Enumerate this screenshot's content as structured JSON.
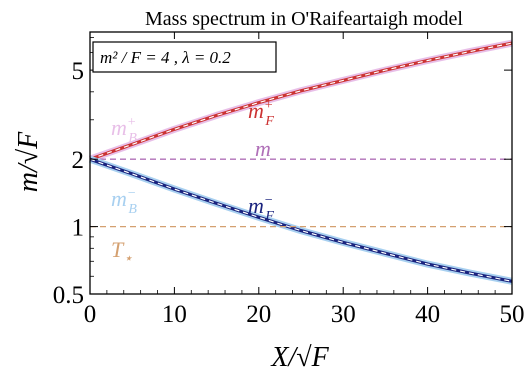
{
  "chart_data": {
    "type": "line",
    "title": "Mass spectrum in O'Raifeartaigh model",
    "xlabel": "X/√F",
    "ylabel": "m/√F",
    "xlim": [
      0,
      50
    ],
    "ylim": [
      0.5,
      7.4
    ],
    "y_scale": "log",
    "grid": false,
    "x_ticks": [
      "0",
      "10",
      "20",
      "30",
      "40",
      "50"
    ],
    "y_ticks": [
      "0.5",
      "1",
      "2",
      "5"
    ],
    "params_box": {
      "text": "m² / F = 4 , λ = 0.2",
      "placement": "top-left"
    },
    "x": [
      0,
      5,
      10,
      15,
      20,
      25,
      30,
      35,
      40,
      45,
      50
    ],
    "series": [
      {
        "key": "mBplus",
        "label": "m_B^+",
        "label_main": "m",
        "label_sup": "+",
        "label_sub": "B",
        "color": "#e8bfe8",
        "style": "solid-band",
        "values": [
          2.0,
          2.33,
          2.72,
          3.14,
          3.58,
          4.04,
          4.5,
          5.0,
          5.52,
          6.05,
          6.6
        ]
      },
      {
        "key": "mFplus",
        "label": "m_F^+",
        "label_main": "m",
        "label_sup": "+",
        "label_sub": "F",
        "color": "#cc3333",
        "style": "dashed",
        "values": [
          2.0,
          2.33,
          2.72,
          3.14,
          3.58,
          4.04,
          4.5,
          5.0,
          5.52,
          6.05,
          6.6
        ]
      },
      {
        "key": "m",
        "label": "m",
        "label_main": "m",
        "label_sup": "",
        "label_sub": "",
        "color": "#b070b8",
        "style": "dashed",
        "values": [
          2.0,
          2.0,
          2.0,
          2.0,
          2.0,
          2.0,
          2.0,
          2.0,
          2.0,
          2.0,
          2.0
        ]
      },
      {
        "key": "mBminus",
        "label": "m_B^-",
        "label_main": "m",
        "label_sup": "−",
        "label_sub": "B",
        "color": "#a8d0f0",
        "style": "solid-band",
        "values": [
          2.0,
          1.72,
          1.47,
          1.27,
          1.1,
          0.96,
          0.85,
          0.76,
          0.68,
          0.62,
          0.57
        ]
      },
      {
        "key": "mFminus",
        "label": "m_F^-",
        "label_main": "m",
        "label_sup": "−",
        "label_sub": "F",
        "color": "#1a237e",
        "style": "dashed",
        "values": [
          2.0,
          1.72,
          1.47,
          1.27,
          1.1,
          0.96,
          0.85,
          0.76,
          0.68,
          0.62,
          0.57
        ]
      },
      {
        "key": "Tstar",
        "label": "T_⋆",
        "label_main": "T",
        "label_sup": "",
        "label_sub": "⋆",
        "color": "#d4a070",
        "style": "dashed",
        "values": [
          1.0,
          1.0,
          1.0,
          1.0,
          1.0,
          1.0,
          1.0,
          1.0,
          1.0,
          1.0,
          1.0
        ]
      }
    ]
  }
}
